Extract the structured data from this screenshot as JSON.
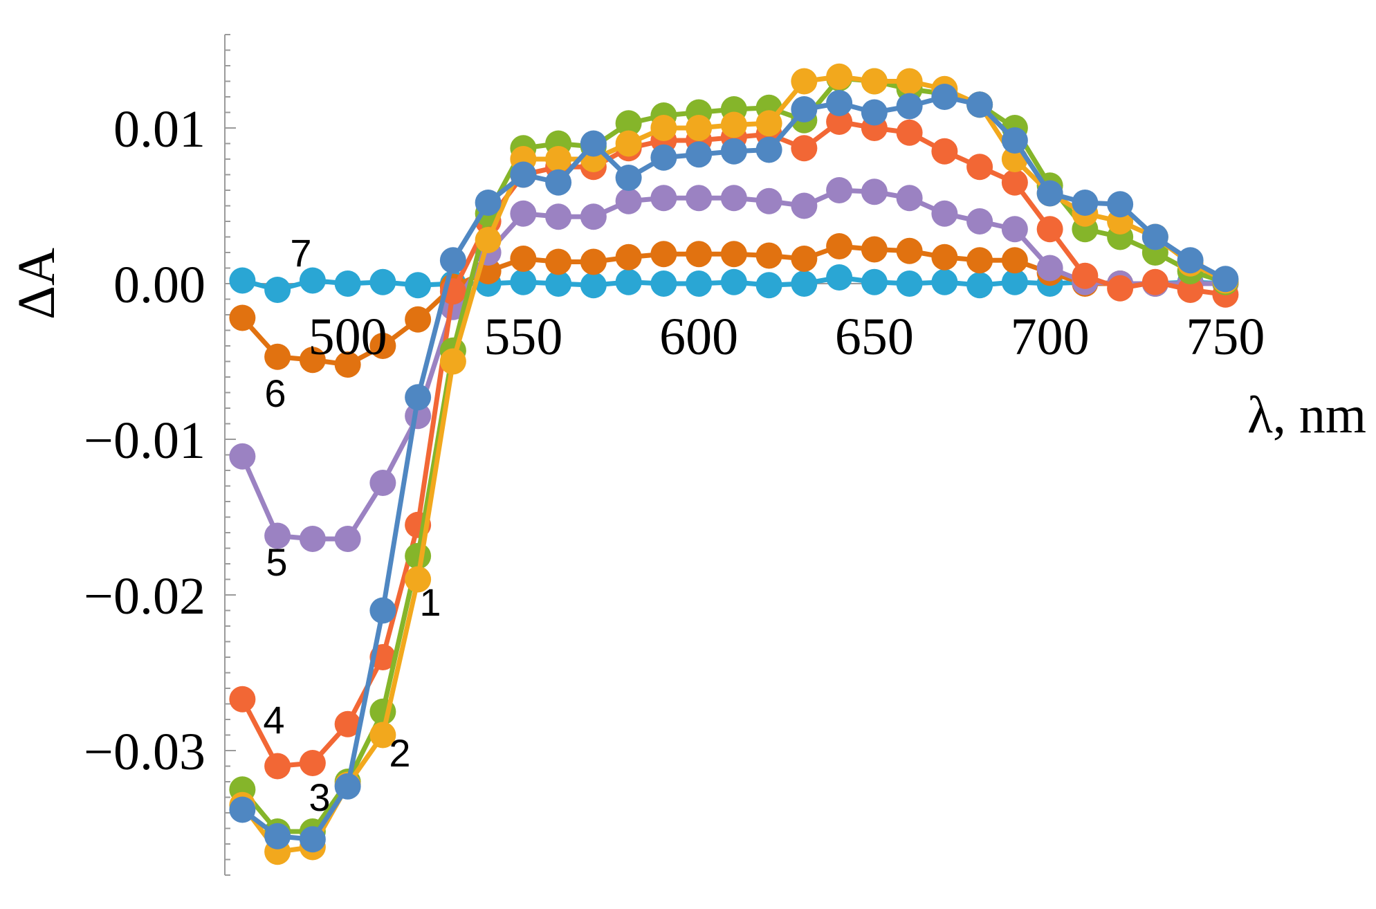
{
  "chart_data": {
    "type": "line",
    "xlabel": "λ, nm",
    "ylabel": "ΔA",
    "xlim": [
      465,
      752
    ],
    "ylim": [
      -0.038,
      0.016
    ],
    "x_ticks": [
      500,
      550,
      600,
      650,
      700,
      750
    ],
    "x_tick_labels": [
      "500",
      "550",
      "600",
      "650",
      "700",
      "750"
    ],
    "y_ticks": [
      0.01,
      0.0,
      -0.01,
      -0.02,
      -0.03
    ],
    "y_tick_labels": [
      "0.01",
      "0.00",
      "−0.01",
      "−0.02",
      "−0.03"
    ],
    "grid": false,
    "markers": true,
    "x": [
      470,
      480,
      490,
      500,
      510,
      520,
      530,
      540,
      550,
      560,
      570,
      580,
      590,
      600,
      610,
      620,
      630,
      640,
      650,
      660,
      670,
      680,
      690,
      700,
      710,
      720,
      730,
      740,
      750
    ],
    "series": [
      {
        "label": "1",
        "color": "#4f87c2",
        "values": [
          -0.0338,
          -0.0355,
          -0.0357,
          -0.0323,
          -0.021,
          -0.0073,
          0.0015,
          0.0052,
          0.007,
          0.0065,
          0.009,
          0.0068,
          0.0081,
          0.0083,
          0.0085,
          0.0086,
          0.0112,
          0.0116,
          0.011,
          0.0114,
          0.012,
          0.0115,
          0.0092,
          0.0058,
          0.0052,
          0.0051,
          0.003,
          0.0015,
          0.0003
        ]
      },
      {
        "label": "2",
        "color": "#f2a81d",
        "values": [
          -0.0335,
          -0.0365,
          -0.0362,
          -0.0322,
          -0.029,
          -0.019,
          -0.005,
          0.0028,
          0.008,
          0.008,
          0.008,
          0.009,
          0.01,
          0.01,
          0.0102,
          0.0103,
          0.013,
          0.0133,
          0.013,
          0.013,
          0.0125,
          0.0115,
          0.008,
          0.0058,
          0.0045,
          0.004,
          0.003,
          0.0013,
          0.0002
        ]
      },
      {
        "label": "3",
        "color": "#85b52a",
        "values": [
          -0.0325,
          -0.0352,
          -0.0352,
          -0.032,
          -0.0275,
          -0.0175,
          -0.0043,
          0.0045,
          0.0087,
          0.009,
          0.0088,
          0.0103,
          0.0108,
          0.011,
          0.0112,
          0.0113,
          0.0105,
          0.0132,
          0.013,
          0.0125,
          0.0122,
          0.0115,
          0.01,
          0.0063,
          0.0035,
          0.003,
          0.002,
          0.0008,
          0.0001
        ]
      },
      {
        "label": "4",
        "color": "#f26735",
        "values": [
          -0.0267,
          -0.031,
          -0.0308,
          -0.0283,
          -0.024,
          -0.0155,
          -0.0005,
          0.004,
          0.007,
          0.0075,
          0.0075,
          0.0087,
          0.0092,
          0.0092,
          0.0094,
          0.0096,
          0.0087,
          0.0104,
          0.01,
          0.0097,
          0.0085,
          0.0075,
          0.0065,
          0.0035,
          0.0005,
          -0.0003,
          0.0001,
          -0.0004,
          -0.0007
        ]
      },
      {
        "label": "5",
        "color": "#9b82c2",
        "values": [
          -0.0111,
          -0.0162,
          -0.0164,
          -0.0164,
          -0.0128,
          -0.0085,
          -0.0015,
          0.002,
          0.0045,
          0.0043,
          0.0043,
          0.0053,
          0.0055,
          0.0055,
          0.0055,
          0.0053,
          0.005,
          0.006,
          0.0059,
          0.0055,
          0.0045,
          0.004,
          0.0035,
          0.001,
          0.0001,
          0.0,
          0.0,
          0.0,
          0.0
        ]
      },
      {
        "label": "6",
        "color": "#e17210",
        "values": [
          -0.0022,
          -0.0047,
          -0.0049,
          -0.0052,
          -0.004,
          -0.0023,
          -0.0002,
          0.0008,
          0.0016,
          0.0014,
          0.0014,
          0.0017,
          0.0019,
          0.0019,
          0.0019,
          0.0018,
          0.0016,
          0.0024,
          0.0022,
          0.0021,
          0.0017,
          0.0015,
          0.0015,
          0.0007,
          0.0,
          0.0,
          0.0,
          0.0,
          0.0
        ]
      },
      {
        "label": "7",
        "color": "#2aa6d4",
        "values": [
          0.0002,
          -0.0004,
          0.0002,
          0.0,
          0.0001,
          -0.0001,
          0.0,
          0.0,
          0.0001,
          0.0,
          -0.0001,
          0.0001,
          0.0,
          0.0,
          0.0001,
          -0.0001,
          0.0,
          0.0004,
          0.0001,
          0.0,
          0.0001,
          -0.0001,
          0.0001,
          0.0,
          0.0001,
          0.0,
          0.0,
          0.0001,
          0.0
        ]
      }
    ]
  }
}
